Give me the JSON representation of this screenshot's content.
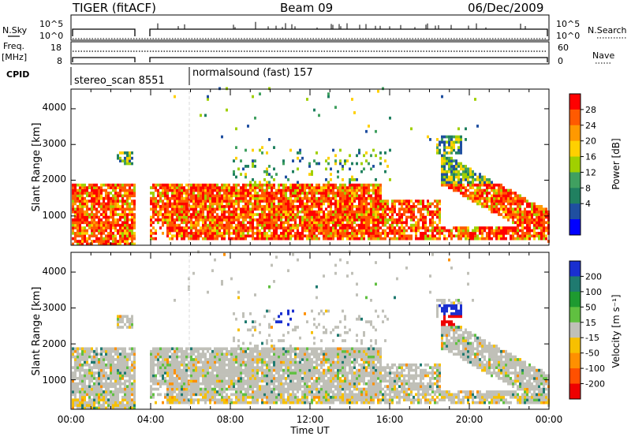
{
  "header": {
    "title": "TIGER (fitACF)",
    "beam": "Beam 09",
    "date": "06/Dec/2009"
  },
  "summary_panel": {
    "nsky_label": "N.Sky",
    "nsky_ticks": [
      "10^5",
      "10^0"
    ],
    "nsearch_label": "N.Search",
    "nsearch_ticks": [
      "10^5",
      "10^0"
    ],
    "freq_label_1": "Freq.",
    "freq_label_2": "[MHz]",
    "freq_ticks": [
      "18",
      "8"
    ],
    "nave_label": "Nave",
    "nave_ticks": [
      "60",
      "0"
    ],
    "cpid_label": "CPID",
    "cpid_segments": [
      {
        "label": "stereo_scan 8551",
        "start_hour": 0
      },
      {
        "label": "normalsound (fast) 157",
        "start_hour": 6
      }
    ]
  },
  "axes": {
    "ylabel": "Slant Range [km]",
    "ytick_labels": [
      "4000",
      "3000",
      "2000",
      "1000"
    ],
    "xtick_labels": [
      "00:00",
      "04:00",
      "08:00",
      "12:00",
      "16:00",
      "20:00",
      "00:00"
    ],
    "xlabel": "Time UT"
  },
  "chart_data": [
    {
      "type": "heatmap",
      "name": "power",
      "x_range_hours": [
        0,
        24
      ],
      "y_range_km": [
        180,
        4550
      ],
      "yticks_km": [
        1000,
        2000,
        3000,
        4000
      ],
      "data_gap_hours": [
        3.15,
        3.9
      ],
      "colorbar": {
        "label": "Power [dB]",
        "ticks": [
          "28",
          "24",
          "20",
          "16",
          "12",
          "8",
          "4"
        ],
        "colors": [
          "#ff0000",
          "#ff5a00",
          "#ff9900",
          "#ffd000",
          "#a0d000",
          "#40a060",
          "#208060",
          "#1f4fa0",
          "#0000ff"
        ]
      }
    },
    {
      "type": "heatmap",
      "name": "velocity",
      "x_range_hours": [
        0,
        24
      ],
      "y_range_km": [
        180,
        4550
      ],
      "yticks_km": [
        1000,
        2000,
        3000,
        4000
      ],
      "data_gap_hours": [
        3.15,
        3.9
      ],
      "colorbar": {
        "label": "Velocity [m s⁻¹]",
        "ticks": [
          "200",
          "100",
          "50",
          "15",
          "-15",
          "-50",
          "-100",
          "-200"
        ],
        "colors": [
          "#1a2fd0",
          "#1f7a70",
          "#1e9a30",
          "#60c040",
          "#c0c0b8",
          "#f7c000",
          "#ff9000",
          "#ff5000",
          "#ee0000"
        ]
      }
    }
  ]
}
